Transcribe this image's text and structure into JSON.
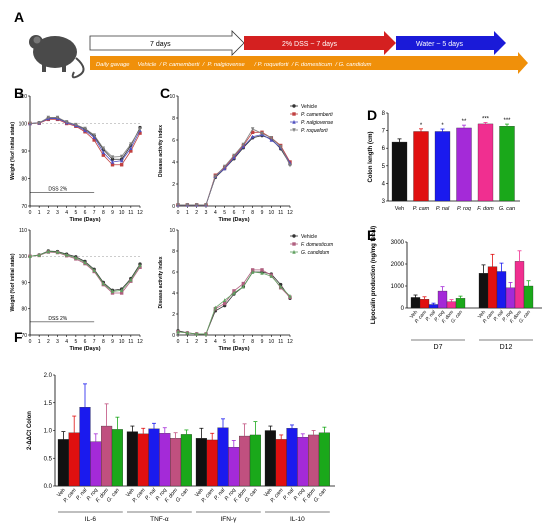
{
  "panels": {
    "A": "A",
    "B": "B",
    "C": "C",
    "D": "D",
    "E": "E",
    "F": "F"
  },
  "timeline": {
    "arrow1": "7 days",
    "arrow2": "2% DSS ~ 7 days",
    "arrow3": "Water ~ 5 days",
    "gavage": "Daily gavage     Vehicle  / P. camemberti  /  P. nalgiovense      / P. roqueforti  / F. domesticum  / G. candidum",
    "colors": {
      "arrow2": "#d42020",
      "arrow3": "#1a1ad8",
      "gavage": "#f0900a"
    }
  },
  "colors": {
    "Veh": "#111111",
    "P. cam": "#e01010",
    "P. nal": "#1a1aee",
    "P. roq": "#a42ad8",
    "F. dom": "#f02f90",
    "G. can": "#1aa81a",
    "F. dom (F)": "#c0507f",
    "Vehicle line": "#333333",
    "P. camemberti": "#c04040",
    "P. nalgiovense": "#5050c0",
    "P. roqueforti": "#7f7f7f",
    "F. domesticum": "#b06080",
    "G. candidum": "#60a060"
  },
  "chart_data": [
    {
      "id": "B1",
      "type": "line",
      "xlabel": "Time (Days)",
      "ylabel": "Weight (%of initial state)",
      "xlim": [
        0,
        12
      ],
      "ylim": [
        70,
        110
      ],
      "xticks": [
        "0",
        "1",
        "2",
        "3",
        "4",
        "5",
        "6",
        "7",
        "8",
        "9",
        "10",
        "11",
        "12"
      ],
      "yticks": [
        "70",
        "80",
        "90",
        "100",
        "110"
      ],
      "annotation": "DSS 2%",
      "x": [
        0,
        1,
        2,
        3,
        4,
        5,
        6,
        7,
        8,
        9,
        10,
        11,
        12
      ],
      "series": [
        {
          "name": "Vehicle",
          "values": [
            100,
            100.3,
            102,
            102,
            100.5,
            99.5,
            98,
            95.5,
            90.5,
            87,
            87,
            92,
            98.5
          ]
        },
        {
          "name": "P. camemberti",
          "values": [
            100,
            100.1,
            101.5,
            101.5,
            100,
            99,
            97,
            94,
            88.5,
            85,
            85,
            90,
            96.5
          ]
        },
        {
          "name": "P. nalgiovense",
          "values": [
            100,
            100.2,
            101.8,
            101.8,
            100.3,
            99.3,
            97.5,
            95,
            89.5,
            86,
            86.5,
            91,
            97.5
          ]
        },
        {
          "name": "P. roqueforti",
          "values": [
            100,
            100.2,
            102.2,
            102.2,
            100.6,
            99.6,
            98.2,
            95.8,
            91,
            87.8,
            88,
            92.5,
            98
          ]
        }
      ]
    },
    {
      "id": "B2",
      "type": "line",
      "xlabel": "Time (Days)",
      "ylabel": "Weight (%of initial state)",
      "xlim": [
        0,
        12
      ],
      "ylim": [
        70,
        110
      ],
      "xticks": [
        "0",
        "1",
        "2",
        "3",
        "4",
        "5",
        "6",
        "7",
        "8",
        "9",
        "10",
        "11",
        "12"
      ],
      "yticks": [
        "70",
        "80",
        "90",
        "100",
        "110"
      ],
      "annotation": "DSS 2%",
      "x": [
        0,
        1,
        2,
        3,
        4,
        5,
        6,
        7,
        8,
        9,
        10,
        11,
        12
      ],
      "series": [
        {
          "name": "Vehicle",
          "values": [
            100,
            100.5,
            102,
            101.8,
            100.8,
            99.8,
            98,
            95,
            90,
            87,
            87.5,
            91.5,
            97
          ]
        },
        {
          "name": "F. domesticum",
          "values": [
            100,
            100.3,
            101.6,
            101.4,
            100.2,
            99,
            97.2,
            94.2,
            89.2,
            86,
            86,
            90.5,
            95.8
          ]
        },
        {
          "name": "G. candidum",
          "values": [
            100,
            100.4,
            101.8,
            101.6,
            100.5,
            99.4,
            97.6,
            94.6,
            89.6,
            86.6,
            87,
            91,
            96.5
          ]
        }
      ]
    },
    {
      "id": "C1",
      "type": "line",
      "xlabel": "Time (Days)",
      "ylabel": "Disease activity index",
      "xlim": [
        0,
        12
      ],
      "ylim": [
        0,
        10
      ],
      "xticks": [
        "0",
        "1",
        "2",
        "3",
        "4",
        "5",
        "6",
        "7",
        "8",
        "9",
        "10",
        "11",
        "12"
      ],
      "yticks": [
        "0",
        "2",
        "4",
        "6",
        "8",
        "10"
      ],
      "legend": "right",
      "x": [
        0,
        1,
        2,
        3,
        4,
        5,
        6,
        7,
        8,
        9,
        10,
        11,
        12
      ],
      "series": [
        {
          "name": "Vehicle",
          "values": [
            0.1,
            0.1,
            0.1,
            0.1,
            2.6,
            3.4,
            4.3,
            5.3,
            6.2,
            6.4,
            6.1,
            5.2,
            3.8
          ]
        },
        {
          "name": "P. camemberti",
          "values": [
            0.1,
            0.1,
            0.1,
            0.1,
            2.8,
            3.5,
            4.5,
            5.5,
            6.7,
            6.7,
            6.2,
            5.5,
            4.0
          ]
        },
        {
          "name": "P. nalgiovense",
          "values": [
            0.1,
            0.1,
            0.1,
            0.1,
            2.7,
            3.4,
            4.4,
            5.4,
            6.3,
            6.5,
            6.0,
            5.3,
            3.9
          ]
        },
        {
          "name": "P. roqueforti",
          "values": [
            0.1,
            0.1,
            0.1,
            0.1,
            2.7,
            3.6,
            4.6,
            5.6,
            7.0,
            6.6,
            6.2,
            5.4,
            3.7
          ]
        }
      ]
    },
    {
      "id": "C2",
      "type": "line",
      "xlabel": "Time (Days)",
      "ylabel": "Disease activity index",
      "xlim": [
        0,
        12
      ],
      "ylim": [
        0,
        10
      ],
      "xticks": [
        "0",
        "1",
        "2",
        "3",
        "4",
        "5",
        "6",
        "7",
        "8",
        "9",
        "10",
        "11",
        "12"
      ],
      "yticks": [
        "0",
        "2",
        "4",
        "6",
        "8",
        "10"
      ],
      "legend": "right",
      "x": [
        0,
        1,
        2,
        3,
        4,
        5,
        6,
        7,
        8,
        9,
        10,
        11,
        12
      ],
      "series": [
        {
          "name": "Vehicle",
          "values": [
            0.4,
            0.2,
            0.1,
            0.1,
            2.3,
            2.8,
            3.9,
            4.6,
            6.0,
            6.0,
            5.8,
            4.8,
            3.5
          ]
        },
        {
          "name": "F. domesticum",
          "values": [
            0.3,
            0.2,
            0.1,
            0.1,
            2.5,
            3.0,
            4.2,
            4.9,
            6.2,
            6.2,
            5.7,
            4.5,
            3.6
          ]
        },
        {
          "name": "G. candidum",
          "values": [
            0.3,
            0.2,
            0.1,
            0.1,
            2.6,
            3.3,
            4.0,
            4.6,
            6.0,
            5.9,
            5.6,
            4.6,
            3.7
          ]
        }
      ]
    },
    {
      "id": "D",
      "type": "bar",
      "ylabel": "Colon length (cm)",
      "ylim": [
        3,
        8
      ],
      "yticks": [
        "3",
        "4",
        "5",
        "6",
        "7",
        "8"
      ],
      "categories": [
        "Veh",
        "P. cam",
        "P. nal",
        "P. roq",
        "F. dom",
        "G. can"
      ],
      "values": [
        6.35,
        6.95,
        6.95,
        7.15,
        7.38,
        7.25
      ],
      "errors": [
        0.18,
        0.15,
        0.14,
        0.16,
        0.08,
        0.12
      ],
      "significance": [
        "",
        "*",
        "*",
        "**",
        "***",
        "***"
      ]
    },
    {
      "id": "E",
      "type": "bar",
      "ylabel": "Lipocalin production (ng/mg fecal)",
      "ylim": [
        0,
        3000
      ],
      "yticks": [
        "0",
        "1000",
        "2000",
        "3000"
      ],
      "categories": [
        "Veh",
        "P. cam",
        "P. nal",
        "P. roq",
        "F. dom",
        "G. can"
      ],
      "groups": [
        "D7",
        "D12"
      ],
      "series": [
        {
          "group": "D7",
          "values": [
            480,
            400,
            160,
            770,
            290,
            440
          ],
          "errors": [
            110,
            110,
            60,
            200,
            90,
            100
          ]
        },
        {
          "group": "D12",
          "values": [
            1580,
            1880,
            1660,
            920,
            2120,
            1000
          ],
          "errors": [
            380,
            560,
            380,
            240,
            480,
            240
          ]
        }
      ]
    },
    {
      "id": "F",
      "type": "bar",
      "ylabel": "2-ΔΔCt Colon",
      "ylim": [
        0,
        2.0
      ],
      "yticks": [
        "0.0",
        "0.5",
        "1.0",
        "1.5",
        "2.0"
      ],
      "categories": [
        "Veh",
        "P. cam",
        "P. nal",
        "P. roq",
        "F. dom",
        "G. can"
      ],
      "groups": [
        "IL-6",
        "TNF-α",
        "IFN-γ",
        "IL-10"
      ],
      "series": [
        {
          "group": "IL-6",
          "values": [
            0.84,
            0.96,
            1.42,
            0.8,
            1.08,
            1.02
          ],
          "errors": [
            0.14,
            0.3,
            0.42,
            0.14,
            0.4,
            0.22
          ]
        },
        {
          "group": "TNF-α",
          "values": [
            0.98,
            0.94,
            1.03,
            0.95,
            0.86,
            0.93
          ],
          "errors": [
            0.1,
            0.1,
            0.1,
            0.1,
            0.1,
            0.08
          ]
        },
        {
          "group": "IFN-γ",
          "values": [
            0.86,
            0.83,
            1.05,
            0.7,
            0.9,
            0.92
          ],
          "errors": [
            0.18,
            0.12,
            0.16,
            0.12,
            0.22,
            0.24
          ]
        },
        {
          "group": "IL-10",
          "values": [
            1.0,
            0.84,
            1.04,
            0.88,
            0.92,
            0.96
          ],
          "errors": [
            0.08,
            0.08,
            0.06,
            0.06,
            0.08,
            0.1
          ]
        }
      ]
    }
  ]
}
